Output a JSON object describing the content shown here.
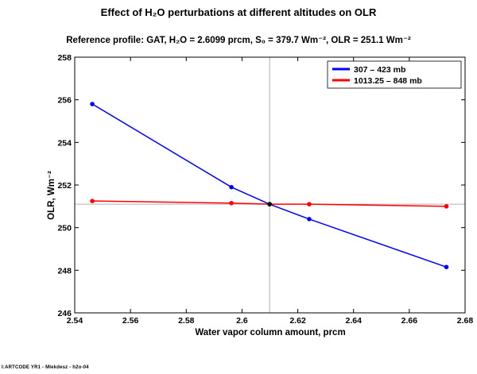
{
  "title": "Effect of H₂O perturbations at different altitudes on OLR",
  "subtitle": "Reference profile: GAT, H₂O = 2.6099 prcm,  S₀ =  379.7 Wm⁻²,  OLR = 251.1 Wm⁻²",
  "footer": "I:ARTCODE YR1 - Mlekdesz - h2o-04",
  "chart_data": {
    "type": "line",
    "xlabel": "Water vapor column amount, prcm",
    "ylabel": "OLR, Wm⁻²",
    "xlim": [
      2.54,
      2.68
    ],
    "ylim": [
      246,
      258
    ],
    "xticks": [
      2.54,
      2.56,
      2.58,
      2.6,
      2.62,
      2.64,
      2.66,
      2.68
    ],
    "xtick_labels": [
      "2.54",
      "2.56",
      "2.58",
      "2.6",
      "2.62",
      "2.64",
      "2.66",
      "2.68"
    ],
    "yticks": [
      246,
      248,
      250,
      252,
      254,
      256,
      258
    ],
    "ytick_labels": [
      "246",
      "248",
      "250",
      "252",
      "254",
      "256",
      "258"
    ],
    "reference": {
      "x": 2.6099,
      "y": 251.1
    },
    "legend_position": "top-right",
    "grid": false,
    "series": [
      {
        "name": "307 – 423 mb",
        "color": "#0000ff",
        "x": [
          2.5463,
          2.5962,
          2.6099,
          2.6241,
          2.6733
        ],
        "y": [
          255.8,
          251.9,
          251.1,
          250.4,
          248.15
        ]
      },
      {
        "name": "1013.25 – 848 mb",
        "color": "#ff0000",
        "x": [
          2.5463,
          2.5962,
          2.6099,
          2.6241,
          2.6733
        ],
        "y": [
          251.25,
          251.15,
          251.1,
          251.1,
          251.0
        ]
      }
    ]
  }
}
